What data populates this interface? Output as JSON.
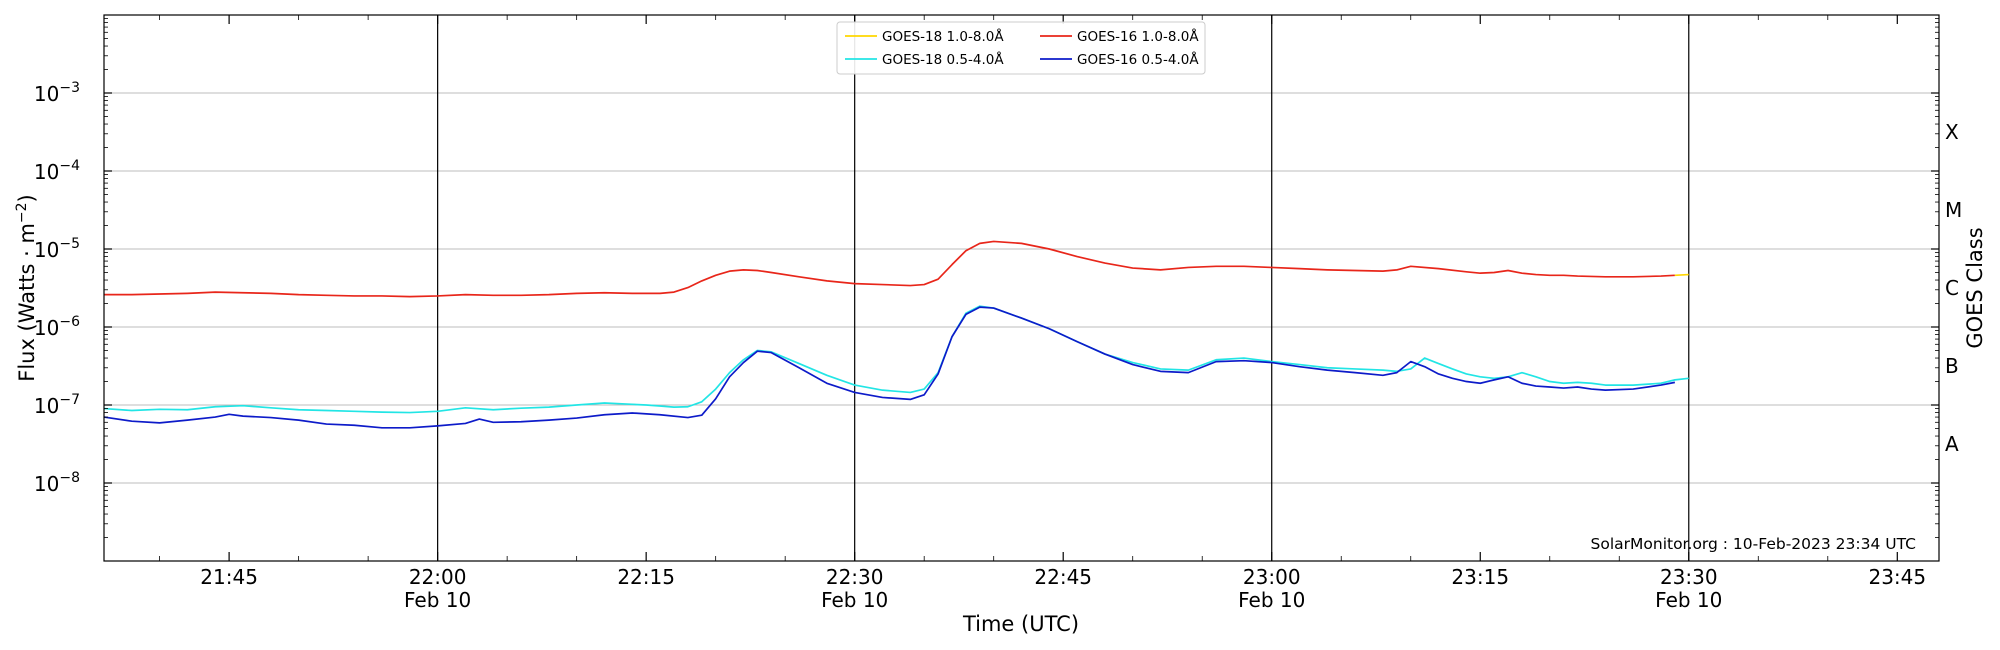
{
  "chart_data": {
    "type": "line",
    "xlabel": "Time (UTC)",
    "ylabel": "Flux (Watts · m",
    "ylabel_sup": "−2",
    "ylabel_close": ")",
    "right_label": "GOES Class",
    "credit": "SolarMonitor.org : 10-Feb-2023 23:34 UTC",
    "y_scale": "log",
    "ylim": [
      1e-09,
      0.01
    ],
    "xlim_minutes": [
      1296,
      1428
    ],
    "grid": "horizontal",
    "legend_placement": "top-center",
    "x_ticks": [
      {
        "minute": 1305,
        "label": "21:45",
        "sub": ""
      },
      {
        "minute": 1320,
        "label": "22:00",
        "sub": "Feb 10"
      },
      {
        "minute": 1335,
        "label": "22:15",
        "sub": ""
      },
      {
        "minute": 1350,
        "label": "22:30",
        "sub": "Feb 10"
      },
      {
        "minute": 1365,
        "label": "22:45",
        "sub": ""
      },
      {
        "minute": 1380,
        "label": "23:00",
        "sub": "Feb 10"
      },
      {
        "minute": 1395,
        "label": "23:15",
        "sub": ""
      },
      {
        "minute": 1410,
        "label": "23:30",
        "sub": "Feb 10"
      },
      {
        "minute": 1425,
        "label": "23:45",
        "sub": ""
      }
    ],
    "vlines_minutes": [
      1320,
      1350,
      1380,
      1410
    ],
    "y_ticks": [
      {
        "exp": -8,
        "label": "10",
        "sup": "−8"
      },
      {
        "exp": -7,
        "label": "10",
        "sup": "−7"
      },
      {
        "exp": -6,
        "label": "10",
        "sup": "−6"
      },
      {
        "exp": -5,
        "label": "10",
        "sup": "−5"
      },
      {
        "exp": -4,
        "label": "10",
        "sup": "−4"
      },
      {
        "exp": -3,
        "label": "10",
        "sup": "−3"
      }
    ],
    "goes_classes": [
      {
        "label": "A",
        "exp": -7.5
      },
      {
        "label": "B",
        "exp": -6.5
      },
      {
        "label": "C",
        "exp": -5.5
      },
      {
        "label": "M",
        "exp": -4.5
      },
      {
        "label": "X",
        "exp": -3.5
      }
    ],
    "series": [
      {
        "name": "GOES-18 1.0-8.0Å",
        "color": "#ffd700",
        "x": [
          1409,
          1410
        ],
        "y": [
          4.6e-06,
          4.7e-06
        ]
      },
      {
        "name": "GOES-18 0.5-4.0Å",
        "color": "#22e5e5",
        "x": [
          1296,
          1298,
          1300,
          1302,
          1304,
          1306,
          1308,
          1310,
          1312,
          1314,
          1316,
          1318,
          1320,
          1322,
          1324,
          1326,
          1328,
          1330,
          1332,
          1334,
          1335,
          1336,
          1337,
          1338,
          1339,
          1340,
          1341,
          1342,
          1343,
          1344,
          1346,
          1348,
          1350,
          1352,
          1354,
          1355,
          1356,
          1357,
          1358,
          1359,
          1360,
          1362,
          1364,
          1366,
          1368,
          1370,
          1372,
          1374,
          1376,
          1378,
          1380,
          1382,
          1384,
          1386,
          1388,
          1389,
          1390,
          1391,
          1392,
          1393,
          1394,
          1395,
          1396,
          1397,
          1398,
          1399,
          1400,
          1401,
          1402,
          1403,
          1404,
          1406,
          1408,
          1409,
          1410
        ],
        "y": [
          9e-08,
          8.5e-08,
          8.8e-08,
          8.7e-08,
          9.5e-08,
          9.8e-08,
          9.2e-08,
          8.7e-08,
          8.5e-08,
          8.3e-08,
          8.1e-08,
          8e-08,
          8.3e-08,
          9.2e-08,
          8.7e-08,
          9.1e-08,
          9.4e-08,
          1e-07,
          1.06e-07,
          1.02e-07,
          1e-07,
          9.7e-08,
          9.4e-08,
          9.5e-08,
          1.1e-07,
          1.6e-07,
          2.6e-07,
          3.8e-07,
          5e-07,
          4.8e-07,
          3.4e-07,
          2.4e-07,
          1.8e-07,
          1.55e-07,
          1.45e-07,
          1.6e-07,
          2.6e-07,
          7.5e-07,
          1.5e-06,
          1.85e-06,
          1.75e-06,
          1.3e-06,
          9.5e-07,
          6.5e-07,
          4.5e-07,
          3.5e-07,
          2.9e-07,
          2.8e-07,
          3.8e-07,
          4e-07,
          3.6e-07,
          3.3e-07,
          3e-07,
          2.9e-07,
          2.8e-07,
          2.7e-07,
          2.9e-07,
          4e-07,
          3.4e-07,
          2.9e-07,
          2.5e-07,
          2.3e-07,
          2.2e-07,
          2.3e-07,
          2.6e-07,
          2.3e-07,
          2e-07,
          1.9e-07,
          1.95e-07,
          1.9e-07,
          1.8e-07,
          1.8e-07,
          1.9e-07,
          2.1e-07,
          2.2e-07
        ]
      },
      {
        "name": "GOES-16 1.0-8.0Å",
        "color": "#e8261a",
        "x": [
          1296,
          1298,
          1300,
          1302,
          1304,
          1306,
          1308,
          1310,
          1312,
          1314,
          1316,
          1318,
          1320,
          1322,
          1324,
          1326,
          1328,
          1330,
          1332,
          1334,
          1336,
          1337,
          1338,
          1339,
          1340,
          1341,
          1342,
          1343,
          1344,
          1346,
          1348,
          1350,
          1352,
          1354,
          1355,
          1356,
          1357,
          1358,
          1359,
          1360,
          1362,
          1364,
          1366,
          1368,
          1370,
          1372,
          1374,
          1376,
          1378,
          1380,
          1382,
          1384,
          1386,
          1388,
          1389,
          1390,
          1392,
          1394,
          1395,
          1396,
          1397,
          1398,
          1399,
          1400,
          1401,
          1402,
          1404,
          1406,
          1408,
          1409
        ],
        "y": [
          2.6e-06,
          2.6e-06,
          2.65e-06,
          2.7e-06,
          2.8e-06,
          2.75e-06,
          2.7e-06,
          2.6e-06,
          2.55e-06,
          2.5e-06,
          2.5e-06,
          2.45e-06,
          2.5e-06,
          2.6e-06,
          2.55e-06,
          2.55e-06,
          2.6e-06,
          2.7e-06,
          2.75e-06,
          2.7e-06,
          2.7e-06,
          2.8e-06,
          3.2e-06,
          3.9e-06,
          4.6e-06,
          5.2e-06,
          5.4e-06,
          5.3e-06,
          5e-06,
          4.4e-06,
          3.9e-06,
          3.6e-06,
          3.5e-06,
          3.4e-06,
          3.5e-06,
          4.1e-06,
          6.3e-06,
          9.5e-06,
          1.18e-05,
          1.25e-05,
          1.18e-05,
          1e-05,
          8e-06,
          6.6e-06,
          5.7e-06,
          5.4e-06,
          5.8e-06,
          6e-06,
          6e-06,
          5.8e-06,
          5.6e-06,
          5.4e-06,
          5.3e-06,
          5.2e-06,
          5.4e-06,
          6e-06,
          5.6e-06,
          5.1e-06,
          4.9e-06,
          5e-06,
          5.3e-06,
          4.9e-06,
          4.7e-06,
          4.6e-06,
          4.6e-06,
          4.5e-06,
          4.4e-06,
          4.4e-06,
          4.5e-06,
          4.6e-06
        ]
      },
      {
        "name": "GOES-16 0.5-4.0Å",
        "color": "#0d1bc9",
        "x": [
          1296,
          1298,
          1300,
          1302,
          1304,
          1305,
          1306,
          1308,
          1310,
          1312,
          1314,
          1316,
          1318,
          1320,
          1322,
          1323,
          1324,
          1326,
          1328,
          1330,
          1332,
          1334,
          1336,
          1338,
          1339,
          1340,
          1341,
          1342,
          1343,
          1344,
          1346,
          1348,
          1350,
          1352,
          1354,
          1355,
          1356,
          1357,
          1358,
          1359,
          1360,
          1362,
          1364,
          1366,
          1368,
          1370,
          1372,
          1374,
          1376,
          1378,
          1380,
          1382,
          1384,
          1386,
          1388,
          1389,
          1390,
          1391,
          1392,
          1393,
          1394,
          1395,
          1396,
          1397,
          1398,
          1399,
          1400,
          1401,
          1402,
          1403,
          1404,
          1406,
          1408,
          1409
        ],
        "y": [
          7e-08,
          6.2e-08,
          5.9e-08,
          6.4e-08,
          7e-08,
          7.6e-08,
          7.2e-08,
          6.9e-08,
          6.4e-08,
          5.7e-08,
          5.5e-08,
          5.1e-08,
          5.1e-08,
          5.4e-08,
          5.8e-08,
          6.6e-08,
          6e-08,
          6.1e-08,
          6.4e-08,
          6.8e-08,
          7.5e-08,
          7.9e-08,
          7.5e-08,
          6.9e-08,
          7.4e-08,
          1.2e-07,
          2.3e-07,
          3.5e-07,
          4.9e-07,
          4.7e-07,
          3e-07,
          1.9e-07,
          1.45e-07,
          1.25e-07,
          1.18e-07,
          1.35e-07,
          2.5e-07,
          7.5e-07,
          1.45e-06,
          1.8e-06,
          1.75e-06,
          1.3e-06,
          9.5e-07,
          6.5e-07,
          4.5e-07,
          3.3e-07,
          2.7e-07,
          2.6e-07,
          3.6e-07,
          3.7e-07,
          3.5e-07,
          3.1e-07,
          2.8e-07,
          2.6e-07,
          2.4e-07,
          2.6e-07,
          3.6e-07,
          3.1e-07,
          2.5e-07,
          2.2e-07,
          2e-07,
          1.9e-07,
          2.1e-07,
          2.3e-07,
          1.9e-07,
          1.75e-07,
          1.7e-07,
          1.65e-07,
          1.7e-07,
          1.6e-07,
          1.55e-07,
          1.6e-07,
          1.8e-07,
          1.95e-07
        ]
      }
    ]
  }
}
